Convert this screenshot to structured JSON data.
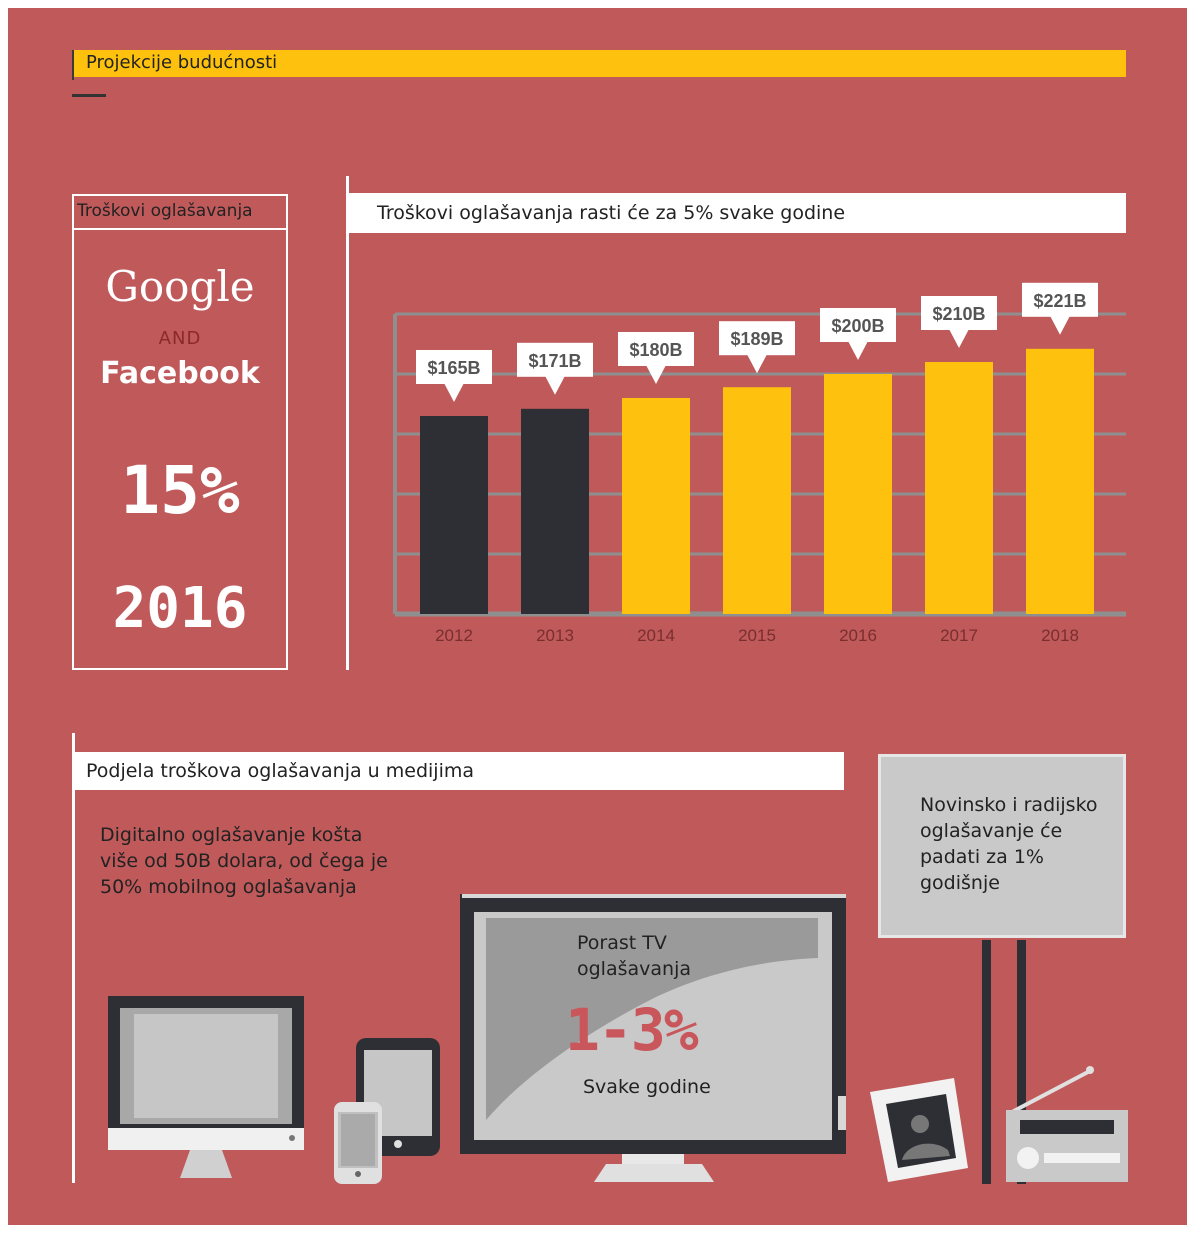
{
  "header": {
    "title": "Projekcije budućnosti"
  },
  "stat": {
    "label": "Troškovi oglašavanja",
    "google": "Google",
    "and": "AND",
    "facebook": "Facebook",
    "percent": "15%",
    "year": "2016"
  },
  "chart_data": {
    "type": "bar",
    "title": "Troškovi oglašavanja rasti će za 5% svake godine",
    "categories": [
      "2012",
      "2013",
      "2014",
      "2015",
      "2016",
      "2017",
      "2018"
    ],
    "values": [
      165,
      171,
      180,
      189,
      200,
      210,
      221
    ],
    "value_labels": [
      "$165B",
      "$171B",
      "$180B",
      "$189B",
      "$200B",
      "$210B",
      "$221B"
    ],
    "ylim": [
      0,
      250
    ],
    "grid": true,
    "colors": {
      "actual": "#2d2f34",
      "projected": "#fdc10e",
      "grid": "#8f8f8f",
      "callout": "#ffffff"
    },
    "projected_from": "2014"
  },
  "media": {
    "title": "Podjela troškova oglašavanja u medijima",
    "digital": "Digitalno oglašavanje košta više od 50B dolara, od čega je 50% mobilnog oglašavanja",
    "tv_label": "Porast TV oglašavanja",
    "tv_percent": "1-3%",
    "tv_every": "Svake godine",
    "radio": "Novinsko i radijsko oglašavanje će padati za 1% godišnje"
  },
  "colors": {
    "background": "#c0595a",
    "accent": "#fdc10e",
    "dark": "#2d2f34"
  }
}
